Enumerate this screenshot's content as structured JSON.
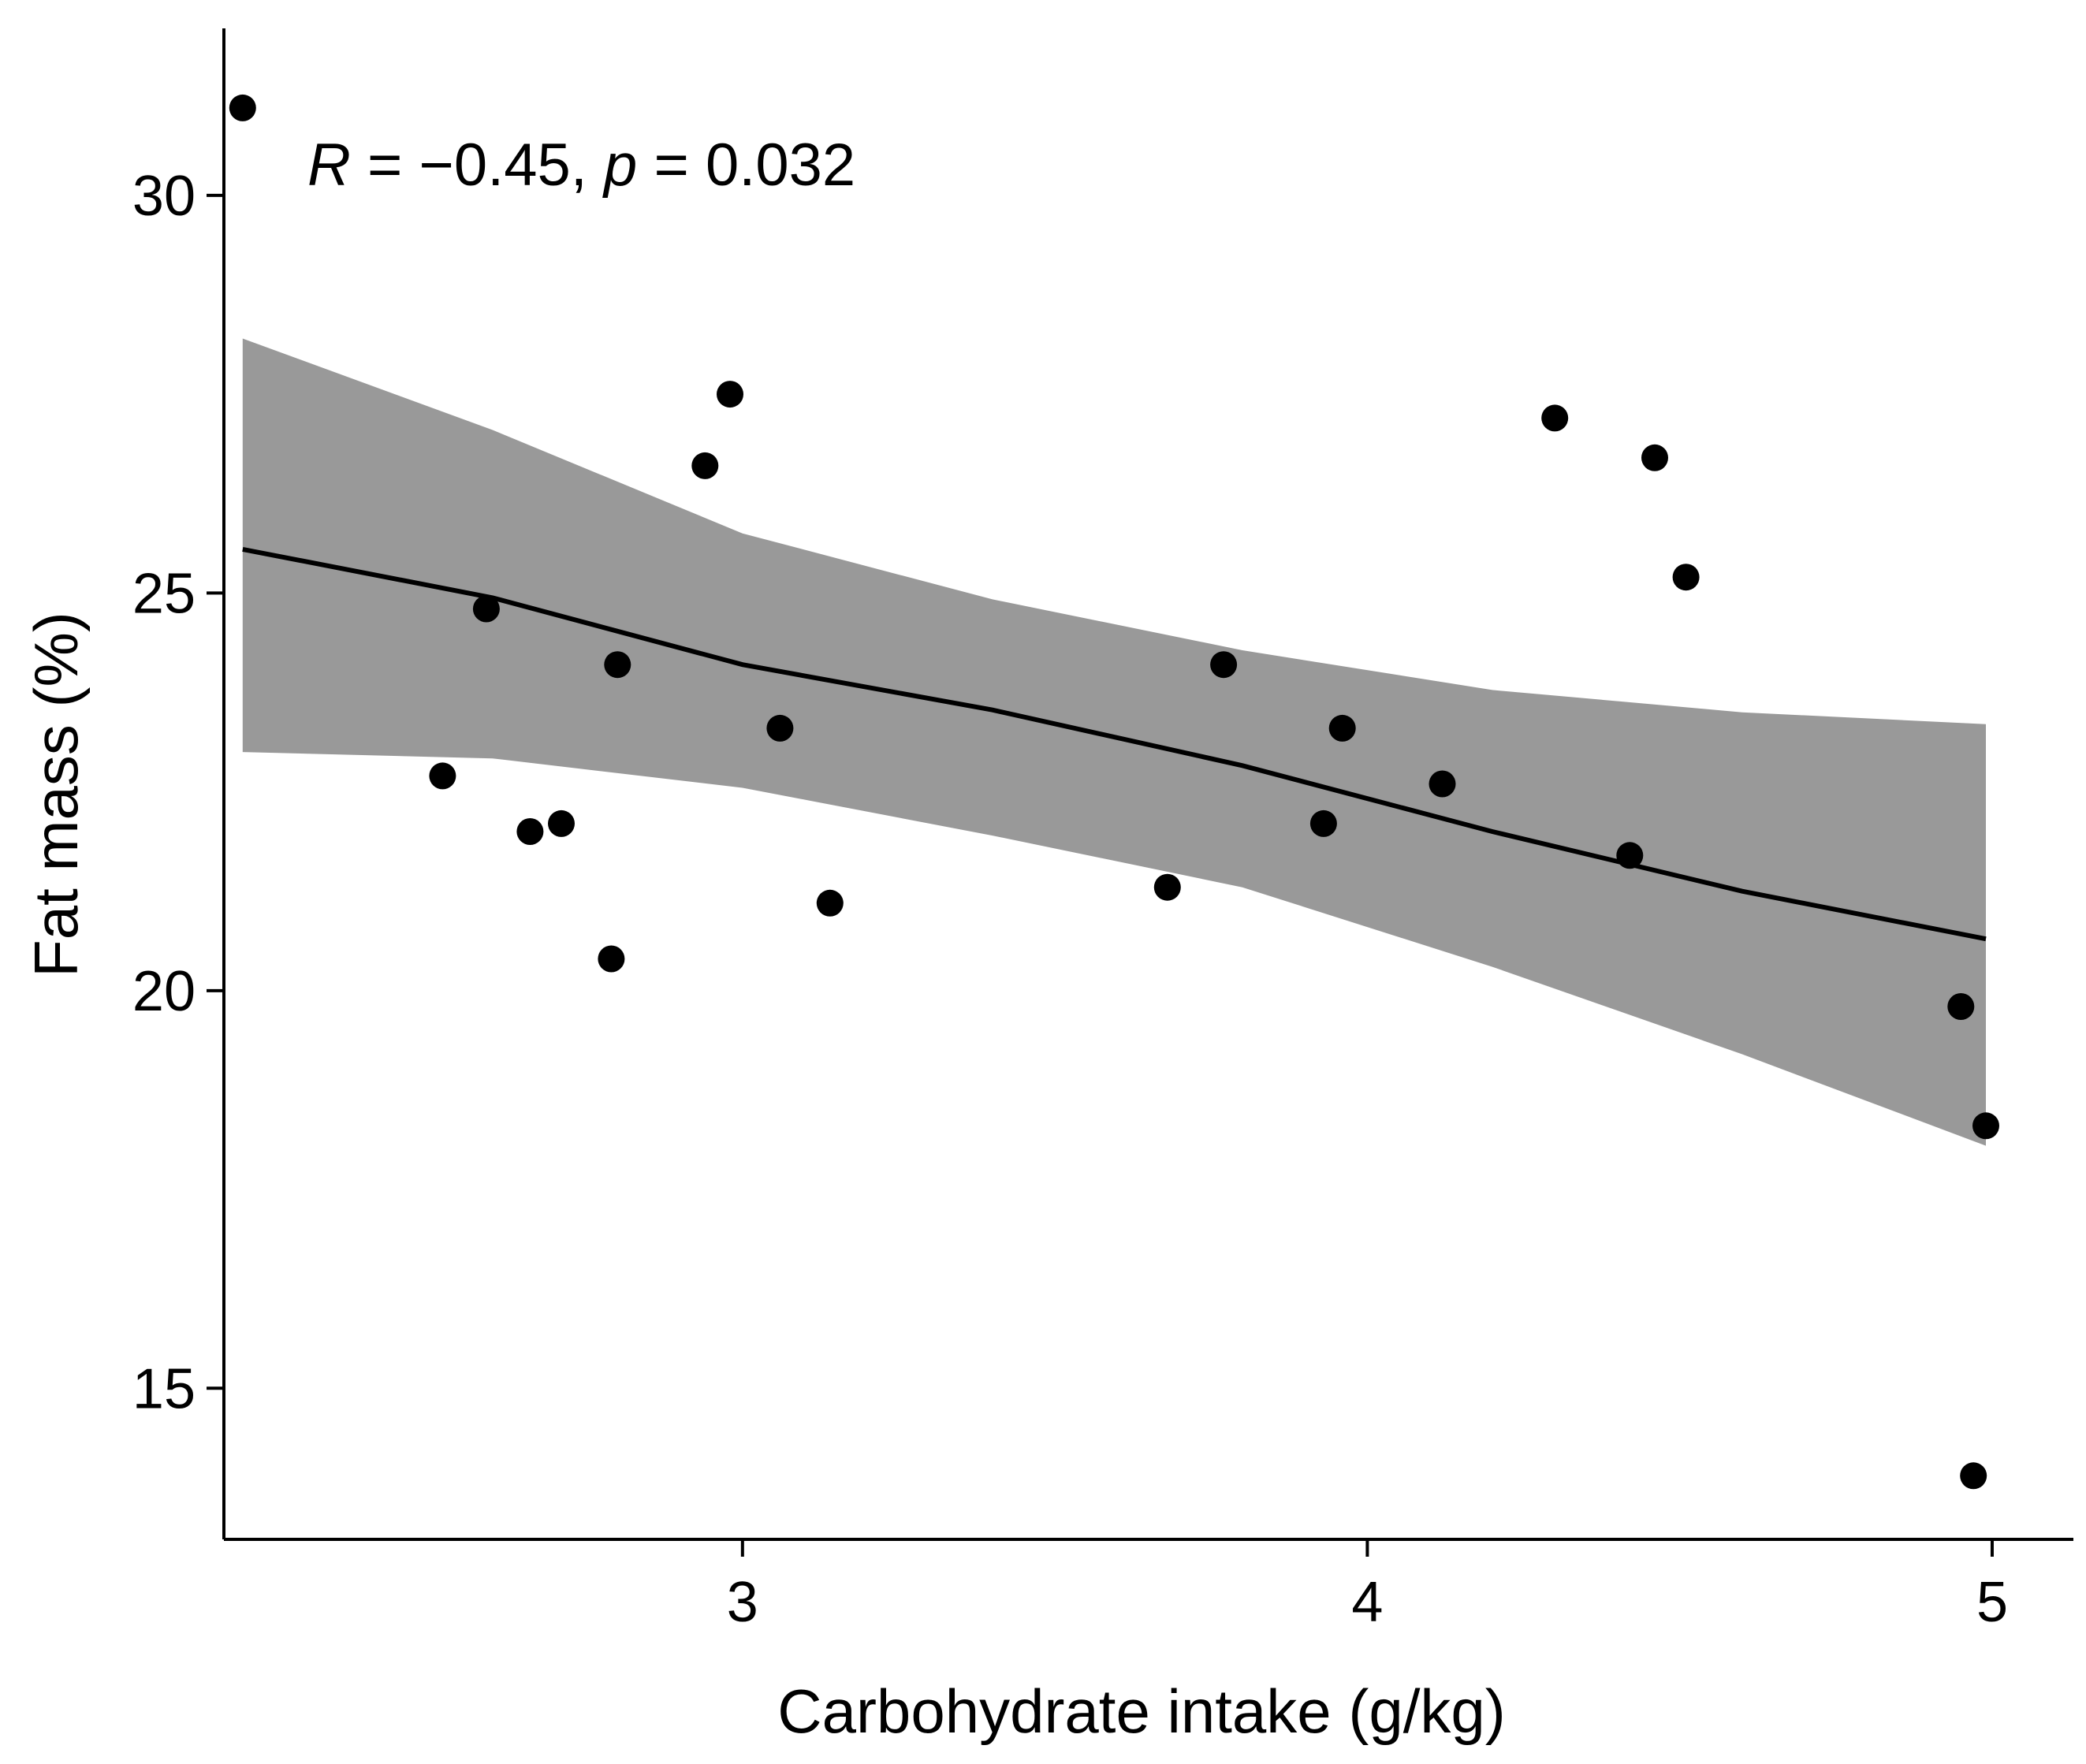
{
  "chart_data": {
    "type": "scatter",
    "title": "",
    "xlabel": "Carbohydrate intake (g/kg)",
    "ylabel": "Fat mass (%)",
    "xlim": [
      2.17,
      5.13
    ],
    "ylim": [
      13.1,
      32.1
    ],
    "x_ticks": [
      3,
      4,
      5
    ],
    "y_ticks": [
      15,
      20,
      25,
      30
    ],
    "grid": false,
    "legend": "none",
    "annotation": {
      "r_symbol": "R",
      "r_text": " = −0.45, ",
      "p_symbol": "p",
      "p_text": " = 0.032"
    },
    "colors": {
      "points": "#000000",
      "fit_line": "#000000",
      "confidence_band": "#999999",
      "axes": "#000000"
    },
    "series": [
      {
        "name": "observations",
        "points": [
          {
            "x": 2.2,
            "y": 31.1
          },
          {
            "x": 2.52,
            "y": 22.7
          },
          {
            "x": 2.59,
            "y": 24.8
          },
          {
            "x": 2.66,
            "y": 22.0
          },
          {
            "x": 2.71,
            "y": 22.1
          },
          {
            "x": 2.79,
            "y": 20.4
          },
          {
            "x": 2.8,
            "y": 24.1
          },
          {
            "x": 2.94,
            "y": 26.6
          },
          {
            "x": 2.98,
            "y": 27.5
          },
          {
            "x": 3.06,
            "y": 23.3
          },
          {
            "x": 3.14,
            "y": 21.1
          },
          {
            "x": 3.68,
            "y": 21.3
          },
          {
            "x": 3.77,
            "y": 24.1
          },
          {
            "x": 3.93,
            "y": 22.1
          },
          {
            "x": 3.96,
            "y": 23.3
          },
          {
            "x": 4.12,
            "y": 22.6
          },
          {
            "x": 4.3,
            "y": 27.2
          },
          {
            "x": 4.42,
            "y": 21.7
          },
          {
            "x": 4.46,
            "y": 26.7
          },
          {
            "x": 4.51,
            "y": 25.2
          },
          {
            "x": 4.95,
            "y": 19.8
          },
          {
            "x": 4.97,
            "y": 13.9
          },
          {
            "x": 4.99,
            "y": 18.3
          }
        ]
      }
    ],
    "fit": {
      "method": "linear",
      "x": [
        2.2,
        2.6,
        3.0,
        3.4,
        3.8,
        4.2,
        4.6,
        4.99
      ],
      "y": [
        25.55,
        24.94,
        24.1,
        23.53,
        22.83,
        22.0,
        21.25,
        20.65
      ],
      "lower": [
        23.0,
        22.92,
        22.55,
        21.95,
        21.3,
        20.3,
        19.2,
        18.05
      ],
      "upper": [
        28.2,
        27.05,
        25.75,
        24.92,
        24.28,
        23.78,
        23.5,
        23.35
      ]
    }
  }
}
